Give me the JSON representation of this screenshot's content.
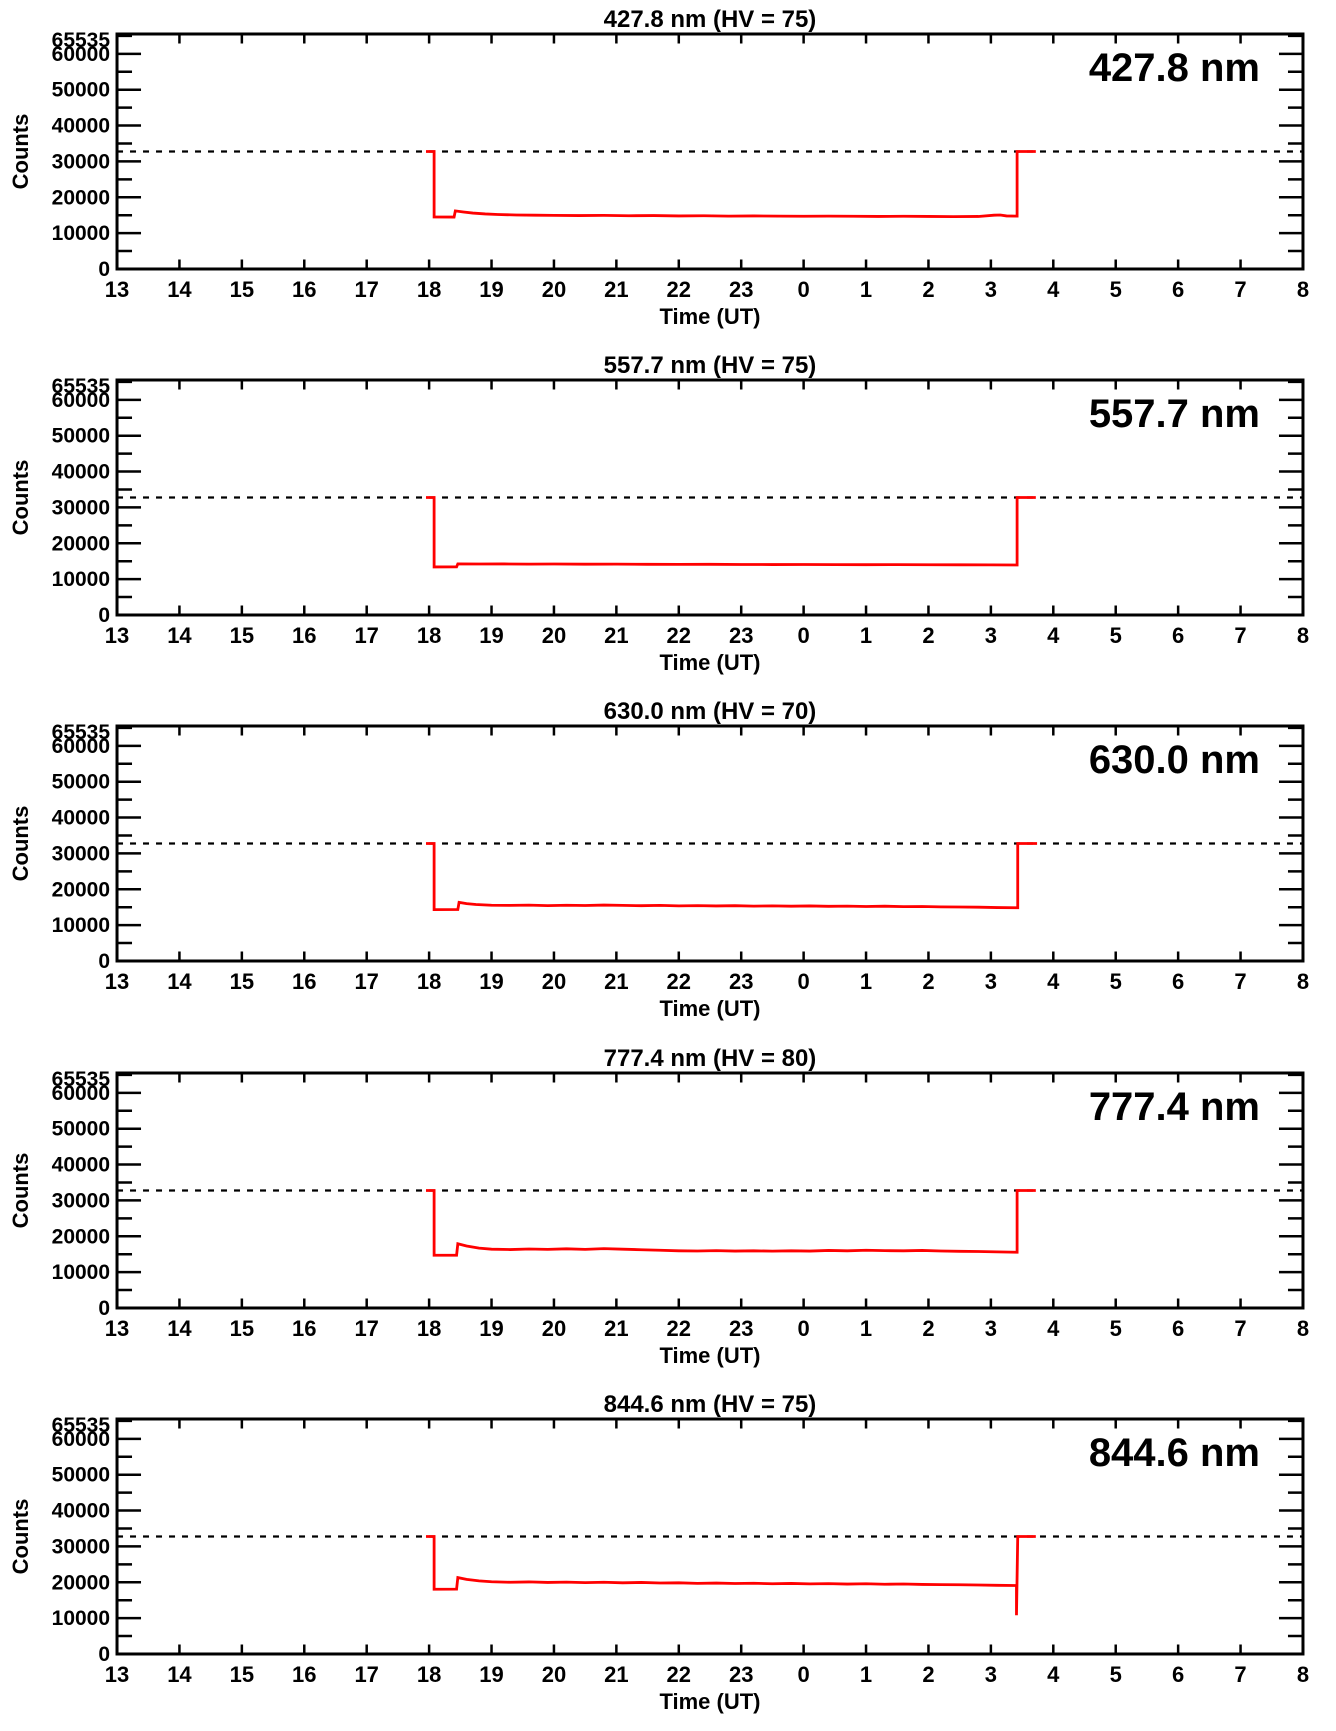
{
  "colors": {
    "background": "#ffffff",
    "axis": "#000000",
    "curve": "#ff0000",
    "threshold_line": "#000000"
  },
  "chart_data": [
    {
      "type": "line",
      "title": "427.8 nm (HV = 75)",
      "corner_label": "427.8 nm",
      "wavelength_nm": 427.8,
      "hv": 75,
      "xlabel": "Time (UT)",
      "ylabel": "Counts",
      "x_tick_labels": [
        "13",
        "14",
        "15",
        "16",
        "17",
        "18",
        "19",
        "20",
        "21",
        "22",
        "23",
        "0",
        "1",
        "2",
        "3",
        "4",
        "5",
        "6",
        "7",
        "8"
      ],
      "x_axis_hours_range": [
        13,
        32
      ],
      "ylim": [
        0,
        65535
      ],
      "y_major_ticks": [
        0,
        10000,
        20000,
        30000,
        40000,
        50000,
        60000,
        65535
      ],
      "y_tick_labels": [
        "0",
        "10000",
        "20000",
        "30000",
        "40000",
        "50000",
        "60000",
        "65535"
      ],
      "y_minor_tick_step": 5000,
      "threshold_counts": 32767,
      "threshold_style": "dashed",
      "series": [
        {
          "name": "counts",
          "color": "#ff0000",
          "points": [
            [
              17.95,
              32767
            ],
            [
              18.08,
              32767
            ],
            [
              18.08,
              14500
            ],
            [
              18.4,
              14480
            ],
            [
              18.42,
              16200
            ],
            [
              18.55,
              15900
            ],
            [
              18.7,
              15600
            ],
            [
              18.9,
              15350
            ],
            [
              19.1,
              15200
            ],
            [
              19.4,
              15050
            ],
            [
              19.7,
              15000
            ],
            [
              20.0,
              14950
            ],
            [
              20.4,
              14900
            ],
            [
              20.8,
              14950
            ],
            [
              21.2,
              14850
            ],
            [
              21.6,
              14900
            ],
            [
              22.0,
              14800
            ],
            [
              22.4,
              14850
            ],
            [
              22.8,
              14750
            ],
            [
              23.2,
              14800
            ],
            [
              23.6,
              14750
            ],
            [
              24.0,
              14700
            ],
            [
              24.4,
              14750
            ],
            [
              24.8,
              14700
            ],
            [
              25.2,
              14650
            ],
            [
              25.6,
              14700
            ],
            [
              26.0,
              14650
            ],
            [
              26.4,
              14600
            ],
            [
              26.8,
              14650
            ],
            [
              27.05,
              15000
            ],
            [
              27.15,
              15050
            ],
            [
              27.25,
              14800
            ],
            [
              27.42,
              14750
            ],
            [
              27.42,
              32767
            ],
            [
              27.72,
              32767
            ]
          ]
        }
      ]
    },
    {
      "type": "line",
      "title": "557.7 nm (HV = 75)",
      "corner_label": "557.7 nm",
      "wavelength_nm": 557.7,
      "hv": 75,
      "xlabel": "Time (UT)",
      "ylabel": "Counts",
      "x_tick_labels": [
        "13",
        "14",
        "15",
        "16",
        "17",
        "18",
        "19",
        "20",
        "21",
        "22",
        "23",
        "0",
        "1",
        "2",
        "3",
        "4",
        "5",
        "6",
        "7",
        "8"
      ],
      "x_axis_hours_range": [
        13,
        32
      ],
      "ylim": [
        0,
        65535
      ],
      "y_major_ticks": [
        0,
        10000,
        20000,
        30000,
        40000,
        50000,
        60000,
        65535
      ],
      "y_tick_labels": [
        "0",
        "10000",
        "20000",
        "30000",
        "40000",
        "50000",
        "60000",
        "65535"
      ],
      "y_minor_tick_step": 5000,
      "threshold_counts": 32767,
      "threshold_style": "dashed",
      "series": [
        {
          "name": "counts",
          "color": "#ff0000",
          "points": [
            [
              17.95,
              32767
            ],
            [
              18.08,
              32767
            ],
            [
              18.08,
              13400
            ],
            [
              18.44,
              13420
            ],
            [
              18.46,
              14250
            ],
            [
              18.8,
              14220
            ],
            [
              19.2,
              14230
            ],
            [
              19.6,
              14190
            ],
            [
              20.0,
              14210
            ],
            [
              20.5,
              14160
            ],
            [
              21.0,
              14180
            ],
            [
              21.5,
              14130
            ],
            [
              22.0,
              14110
            ],
            [
              22.5,
              14130
            ],
            [
              23.0,
              14090
            ],
            [
              23.5,
              14070
            ],
            [
              24.0,
              14090
            ],
            [
              24.5,
              14050
            ],
            [
              25.0,
              14030
            ],
            [
              25.5,
              14050
            ],
            [
              26.0,
              14010
            ],
            [
              26.5,
              13990
            ],
            [
              27.0,
              13970
            ],
            [
              27.42,
              13950
            ],
            [
              27.42,
              32767
            ],
            [
              27.72,
              32767
            ]
          ]
        }
      ]
    },
    {
      "type": "line",
      "title": "630.0 nm (HV = 70)",
      "corner_label": "630.0 nm",
      "wavelength_nm": 630.0,
      "hv": 70,
      "xlabel": "Time (UT)",
      "ylabel": "Counts",
      "x_tick_labels": [
        "13",
        "14",
        "15",
        "16",
        "17",
        "18",
        "19",
        "20",
        "21",
        "22",
        "23",
        "0",
        "1",
        "2",
        "3",
        "4",
        "5",
        "6",
        "7",
        "8"
      ],
      "x_axis_hours_range": [
        13,
        32
      ],
      "ylim": [
        0,
        65535
      ],
      "y_major_ticks": [
        0,
        10000,
        20000,
        30000,
        40000,
        50000,
        60000,
        65535
      ],
      "y_tick_labels": [
        "0",
        "10000",
        "20000",
        "30000",
        "40000",
        "50000",
        "60000",
        "65535"
      ],
      "y_minor_tick_step": 5000,
      "threshold_counts": 32767,
      "threshold_style": "dashed",
      "series": [
        {
          "name": "counts",
          "color": "#ff0000",
          "points": [
            [
              17.95,
              32767
            ],
            [
              18.08,
              32767
            ],
            [
              18.08,
              14330
            ],
            [
              18.46,
              14350
            ],
            [
              18.48,
              16350
            ],
            [
              18.6,
              16000
            ],
            [
              18.75,
              15750
            ],
            [
              19.0,
              15550
            ],
            [
              19.3,
              15500
            ],
            [
              19.6,
              15580
            ],
            [
              19.9,
              15450
            ],
            [
              20.2,
              15550
            ],
            [
              20.5,
              15480
            ],
            [
              20.8,
              15600
            ],
            [
              21.1,
              15500
            ],
            [
              21.4,
              15420
            ],
            [
              21.7,
              15500
            ],
            [
              22.0,
              15380
            ],
            [
              22.3,
              15450
            ],
            [
              22.6,
              15350
            ],
            [
              22.9,
              15420
            ],
            [
              23.2,
              15300
            ],
            [
              23.5,
              15380
            ],
            [
              23.8,
              15280
            ],
            [
              24.1,
              15350
            ],
            [
              24.4,
              15250
            ],
            [
              24.7,
              15300
            ],
            [
              25.0,
              15200
            ],
            [
              25.3,
              15280
            ],
            [
              25.6,
              15150
            ],
            [
              25.9,
              15200
            ],
            [
              26.2,
              15100
            ],
            [
              26.5,
              15050
            ],
            [
              26.8,
              15000
            ],
            [
              27.1,
              14900
            ],
            [
              27.43,
              14850
            ],
            [
              27.43,
              32767
            ],
            [
              27.74,
              32767
            ]
          ]
        }
      ]
    },
    {
      "type": "line",
      "title": "777.4 nm (HV = 80)",
      "corner_label": "777.4 nm",
      "wavelength_nm": 777.4,
      "hv": 80,
      "xlabel": "Time (UT)",
      "ylabel": "Counts",
      "x_tick_labels": [
        "13",
        "14",
        "15",
        "16",
        "17",
        "18",
        "19",
        "20",
        "21",
        "22",
        "23",
        "0",
        "1",
        "2",
        "3",
        "4",
        "5",
        "6",
        "7",
        "8"
      ],
      "x_axis_hours_range": [
        13,
        32
      ],
      "ylim": [
        0,
        65535
      ],
      "y_major_ticks": [
        0,
        10000,
        20000,
        30000,
        40000,
        50000,
        60000,
        65535
      ],
      "y_tick_labels": [
        "0",
        "10000",
        "20000",
        "30000",
        "40000",
        "50000",
        "60000",
        "65535"
      ],
      "y_minor_tick_step": 5000,
      "threshold_counts": 32767,
      "threshold_style": "dashed",
      "series": [
        {
          "name": "counts",
          "color": "#ff0000",
          "points": [
            [
              17.95,
              32767
            ],
            [
              18.08,
              32767
            ],
            [
              18.08,
              14700
            ],
            [
              18.44,
              14720
            ],
            [
              18.46,
              17900
            ],
            [
              18.6,
              17300
            ],
            [
              18.8,
              16700
            ],
            [
              19.0,
              16400
            ],
            [
              19.3,
              16300
            ],
            [
              19.6,
              16450
            ],
            [
              19.9,
              16350
            ],
            [
              20.2,
              16500
            ],
            [
              20.5,
              16350
            ],
            [
              20.8,
              16550
            ],
            [
              21.1,
              16400
            ],
            [
              21.4,
              16250
            ],
            [
              21.7,
              16100
            ],
            [
              22.0,
              15950
            ],
            [
              22.3,
              15900
            ],
            [
              22.6,
              16000
            ],
            [
              22.9,
              15880
            ],
            [
              23.2,
              15950
            ],
            [
              23.5,
              15850
            ],
            [
              23.8,
              15950
            ],
            [
              24.1,
              15880
            ],
            [
              24.4,
              16050
            ],
            [
              24.7,
              15950
            ],
            [
              25.0,
              16100
            ],
            [
              25.3,
              16000
            ],
            [
              25.6,
              15950
            ],
            [
              25.9,
              16050
            ],
            [
              26.2,
              15900
            ],
            [
              26.5,
              15800
            ],
            [
              26.8,
              15750
            ],
            [
              27.1,
              15650
            ],
            [
              27.42,
              15550
            ],
            [
              27.42,
              32767
            ],
            [
              27.72,
              32767
            ]
          ]
        }
      ]
    },
    {
      "type": "line",
      "title": "844.6 nm (HV = 75)",
      "corner_label": "844.6 nm",
      "wavelength_nm": 844.6,
      "hv": 75,
      "xlabel": "Time (UT)",
      "ylabel": "Counts",
      "x_tick_labels": [
        "13",
        "14",
        "15",
        "16",
        "17",
        "18",
        "19",
        "20",
        "21",
        "22",
        "23",
        "0",
        "1",
        "2",
        "3",
        "4",
        "5",
        "6",
        "7",
        "8"
      ],
      "x_axis_hours_range": [
        13,
        32
      ],
      "ylim": [
        0,
        65535
      ],
      "y_major_ticks": [
        0,
        10000,
        20000,
        30000,
        40000,
        50000,
        60000,
        65535
      ],
      "y_tick_labels": [
        "0",
        "10000",
        "20000",
        "30000",
        "40000",
        "50000",
        "60000",
        "65535"
      ],
      "y_minor_tick_step": 5000,
      "threshold_counts": 32767,
      "threshold_style": "dashed",
      "series": [
        {
          "name": "counts",
          "color": "#ff0000",
          "points": [
            [
              17.95,
              32767
            ],
            [
              18.08,
              32767
            ],
            [
              18.08,
              18050
            ],
            [
              18.44,
              18100
            ],
            [
              18.46,
              21300
            ],
            [
              18.6,
              20800
            ],
            [
              18.8,
              20400
            ],
            [
              19.0,
              20150
            ],
            [
              19.3,
              20000
            ],
            [
              19.6,
              20100
            ],
            [
              19.9,
              19950
            ],
            [
              20.2,
              20050
            ],
            [
              20.5,
              19900
            ],
            [
              20.8,
              20000
            ],
            [
              21.1,
              19850
            ],
            [
              21.4,
              19950
            ],
            [
              21.7,
              19800
            ],
            [
              22.0,
              19850
            ],
            [
              22.3,
              19700
            ],
            [
              22.6,
              19780
            ],
            [
              22.9,
              19650
            ],
            [
              23.2,
              19720
            ],
            [
              23.5,
              19600
            ],
            [
              23.8,
              19680
            ],
            [
              24.1,
              19550
            ],
            [
              24.4,
              19620
            ],
            [
              24.7,
              19500
            ],
            [
              25.0,
              19580
            ],
            [
              25.3,
              19450
            ],
            [
              25.6,
              19520
            ],
            [
              25.9,
              19400
            ],
            [
              26.2,
              19350
            ],
            [
              26.5,
              19300
            ],
            [
              26.8,
              19250
            ],
            [
              27.1,
              19150
            ],
            [
              27.38,
              19100
            ],
            [
              27.41,
              19100
            ],
            [
              27.41,
              10800
            ],
            [
              27.43,
              32767
            ],
            [
              27.72,
              32767
            ]
          ]
        }
      ]
    }
  ]
}
